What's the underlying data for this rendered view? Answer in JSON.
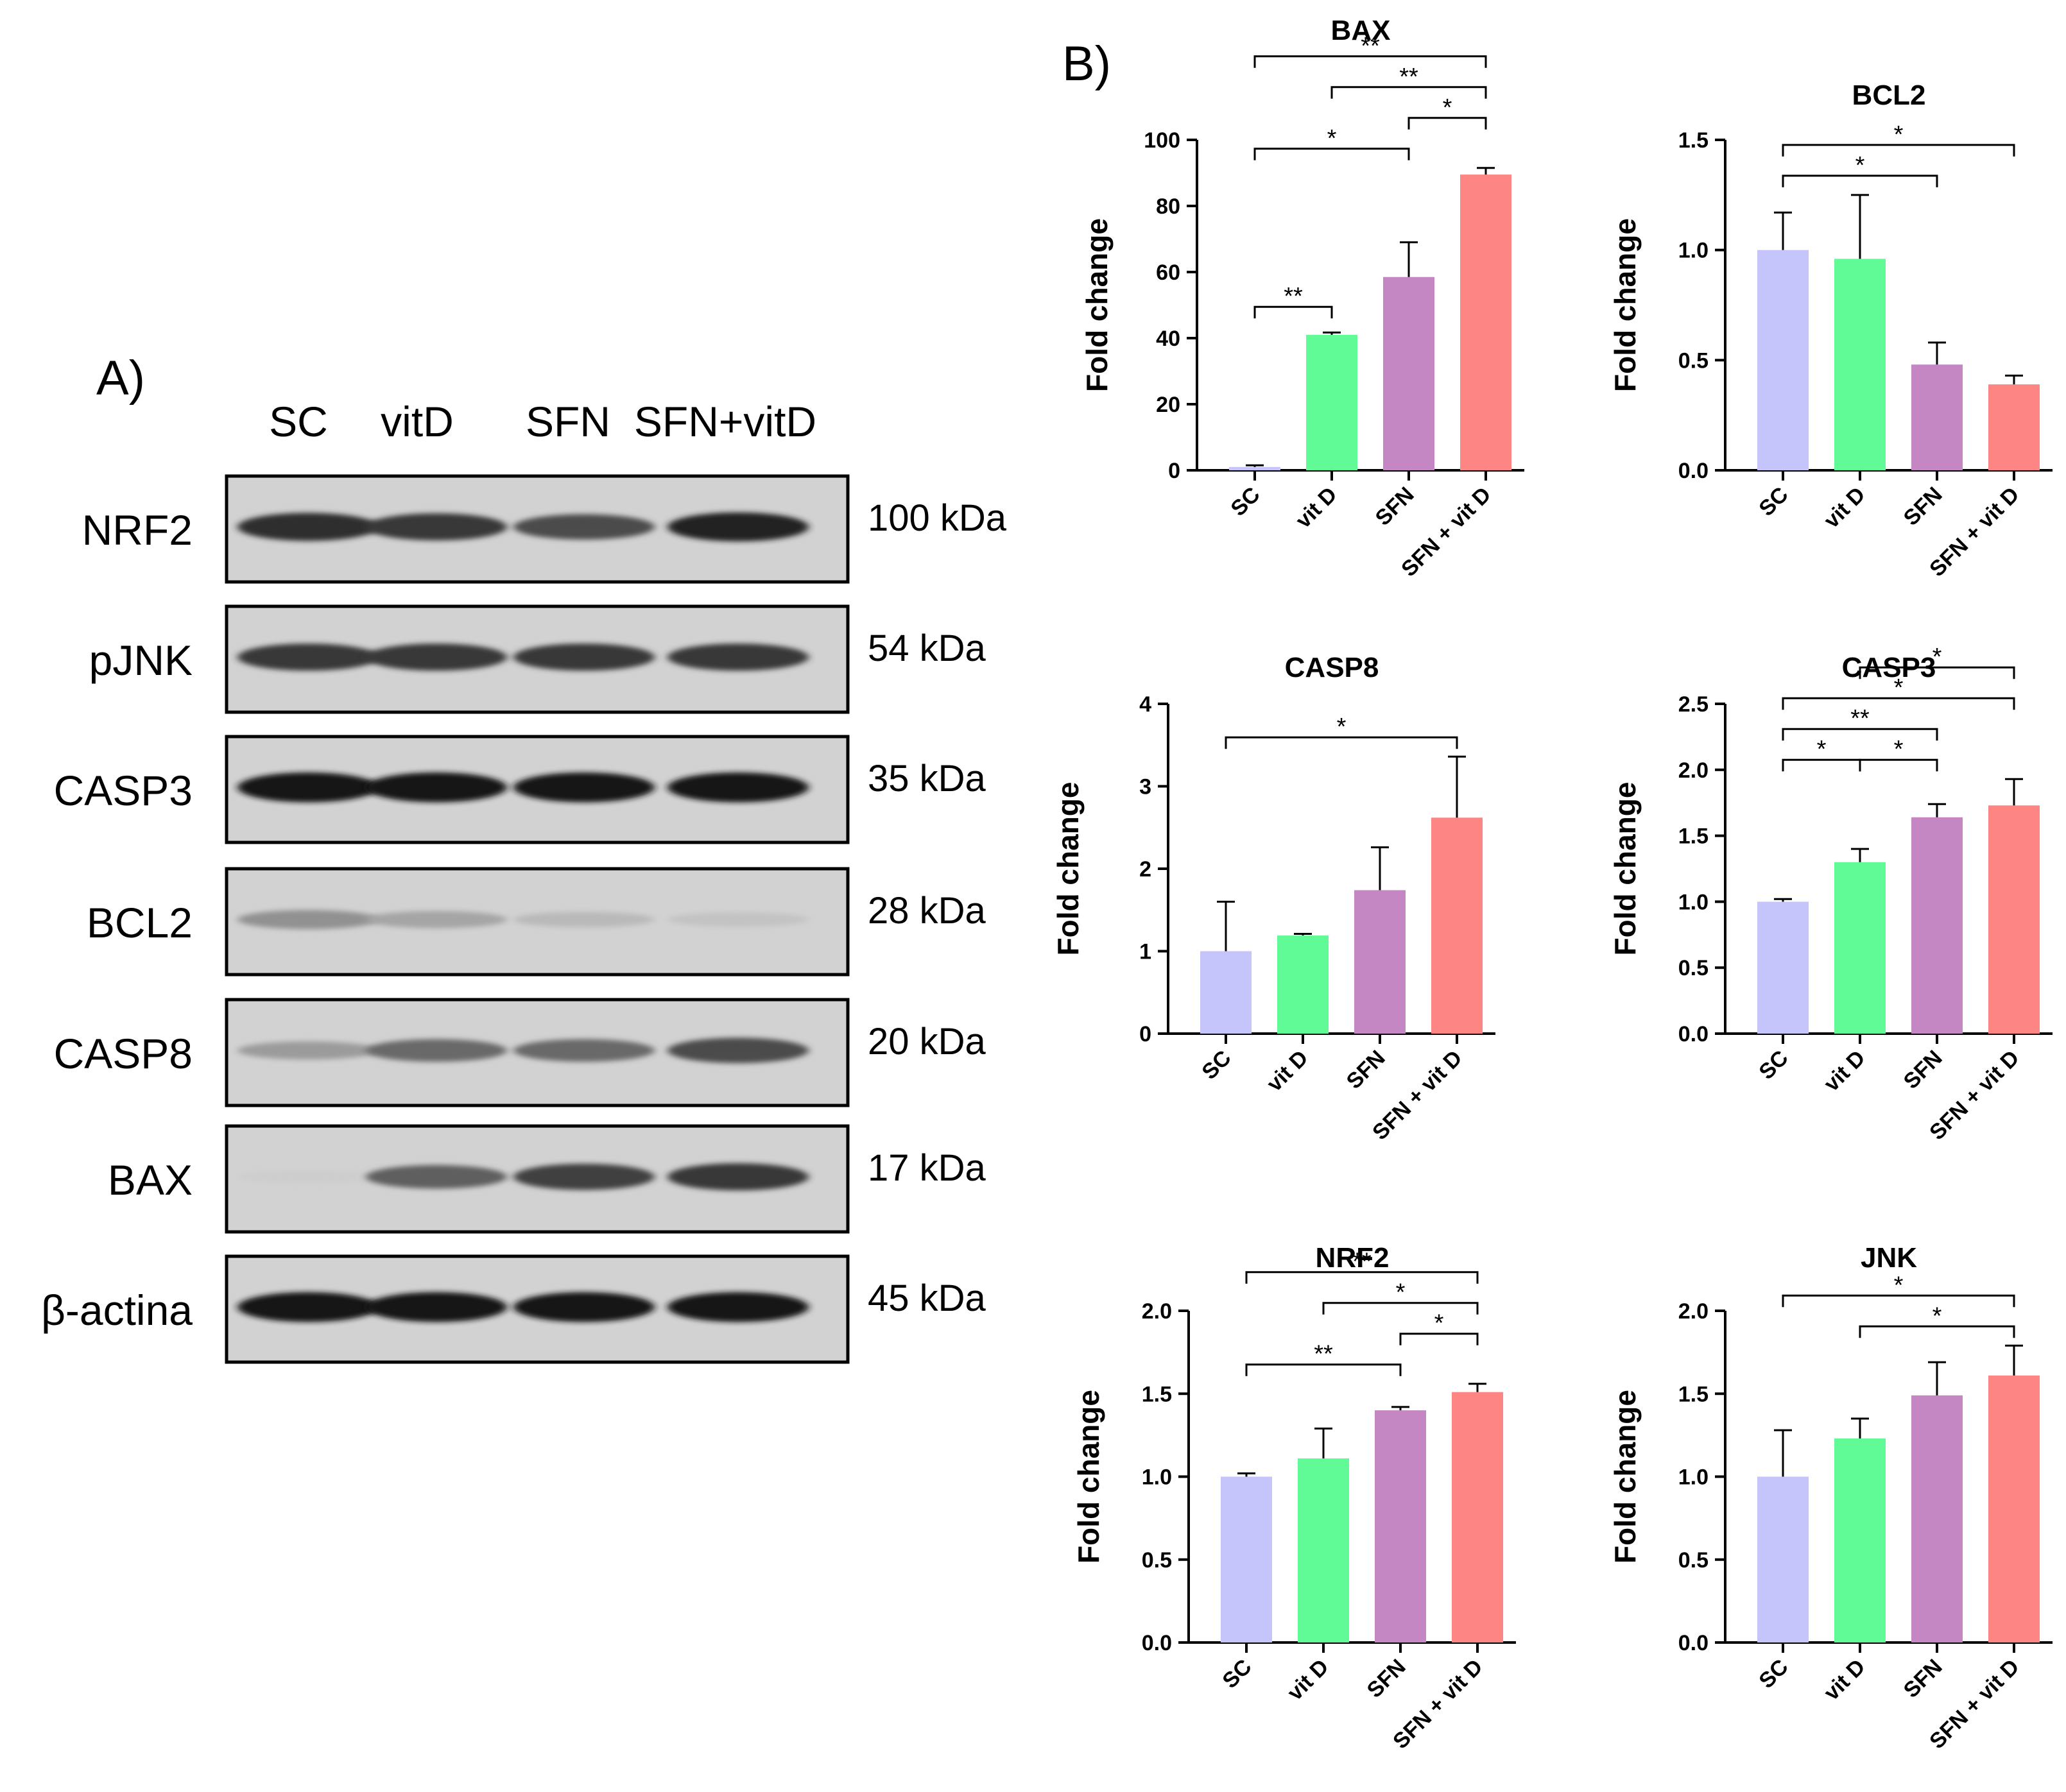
{
  "panel_a": {
    "label": "A)",
    "lanes": [
      "SC",
      "vitD",
      "SFN",
      "SFN+vitD"
    ],
    "blots": [
      {
        "protein": "NRF2",
        "size": "100 kDa",
        "bands": [
          0.85,
          0.8,
          0.7,
          0.9
        ]
      },
      {
        "protein": "pJNK",
        "size": "54 kDa",
        "bands": [
          0.8,
          0.8,
          0.8,
          0.8
        ]
      },
      {
        "protein": "CASP3",
        "size": "35 kDa",
        "bands": [
          0.95,
          0.95,
          0.95,
          0.95
        ]
      },
      {
        "protein": "BCL2",
        "size": "28 kDa",
        "bands": [
          0.35,
          0.25,
          0.15,
          0.1
        ]
      },
      {
        "protein": "CASP8",
        "size": "20 kDa",
        "bands": [
          0.3,
          0.55,
          0.55,
          0.7
        ]
      },
      {
        "protein": "BAX",
        "size": "17 kDa",
        "bands": [
          0.05,
          0.6,
          0.75,
          0.8
        ]
      },
      {
        "protein": "β-actina",
        "size": "45 kDa",
        "bands": [
          0.95,
          0.95,
          0.95,
          0.95
        ]
      }
    ]
  },
  "panel_b": {
    "label": "B)"
  },
  "chart_data": [
    {
      "type": "bar",
      "title": "BAX",
      "ylabel": "Fold change",
      "categories": [
        "SC",
        "vit D",
        "SFN",
        "SFN + vit D"
      ],
      "values": [
        1,
        41,
        58.5,
        89.5
      ],
      "errors": [
        0.5,
        0.7,
        10.5,
        2
      ],
      "ylim": [
        0,
        100
      ],
      "yticks": [
        "0",
        "20",
        "40",
        "60",
        "80",
        "100"
      ],
      "colors": [
        "#c5c5fb",
        "#60fb96",
        "#c487c4",
        "#fd8685"
      ],
      "significance": [
        {
          "from": 0,
          "to": 3,
          "label": "**",
          "level": 3
        },
        {
          "from": 1,
          "to": 3,
          "label": "**",
          "level": 2
        },
        {
          "from": 2,
          "to": 3,
          "label": "*",
          "level": 1
        },
        {
          "from": 0,
          "to": 2,
          "label": "*",
          "level": 0
        },
        {
          "from": 0,
          "to": 1,
          "label": "**",
          "level": -1
        }
      ]
    },
    {
      "type": "bar",
      "title": "BCL2",
      "ylabel": "Fold change",
      "categories": [
        "SC",
        "vit D",
        "SFN",
        "SFN + vit D"
      ],
      "values": [
        1.0,
        0.96,
        0.48,
        0.39
      ],
      "errors": [
        0.17,
        0.29,
        0.1,
        0.04
      ],
      "ylim": [
        0,
        1.5
      ],
      "yticks": [
        "0.0",
        "0.5",
        "1.0",
        "1.5"
      ],
      "colors": [
        "#c5c5fb",
        "#60fb96",
        "#c487c4",
        "#fd8685"
      ],
      "significance": [
        {
          "from": 0,
          "to": 3,
          "label": "*",
          "level": 1
        },
        {
          "from": 0,
          "to": 2,
          "label": "*",
          "level": 0
        }
      ]
    },
    {
      "type": "bar",
      "title": "CASP8",
      "ylabel": "Fold change",
      "categories": [
        "SC",
        "vit D",
        "SFN",
        "SFN + vit D"
      ],
      "values": [
        1.0,
        1.19,
        1.74,
        2.62
      ],
      "errors": [
        0.6,
        0.02,
        0.52,
        0.74
      ],
      "ylim": [
        0,
        4
      ],
      "yticks": [
        "0",
        "1",
        "2",
        "3",
        "4"
      ],
      "colors": [
        "#c5c5fb",
        "#60fb96",
        "#c487c4",
        "#fd8685"
      ],
      "significance": [
        {
          "from": 0,
          "to": 3,
          "label": "*",
          "level": 0
        }
      ]
    },
    {
      "type": "bar",
      "title": "CASP3",
      "ylabel": "Fold change",
      "categories": [
        "SC",
        "vit D",
        "SFN",
        "SFN + vit D"
      ],
      "values": [
        1.0,
        1.3,
        1.64,
        1.73
      ],
      "errors": [
        0.02,
        0.1,
        0.1,
        0.2
      ],
      "ylim": [
        0,
        2.5
      ],
      "yticks": [
        "0.0",
        "0.5",
        "1.0",
        "1.5",
        "2.0",
        "2.5"
      ],
      "colors": [
        "#c5c5fb",
        "#60fb96",
        "#c487c4",
        "#fd8685"
      ],
      "significance": [
        {
          "from": 1,
          "to": 3,
          "label": "*",
          "level": 3
        },
        {
          "from": 0,
          "to": 3,
          "label": "*",
          "level": 2
        },
        {
          "from": 0,
          "to": 2,
          "label": "**",
          "level": 1
        },
        {
          "from": 0,
          "to": 1,
          "label": "*",
          "level": 0
        },
        {
          "from": 1,
          "to": 2,
          "label": "*",
          "level": 0
        }
      ]
    },
    {
      "type": "bar",
      "title": "NRF2",
      "ylabel": "Fold change",
      "categories": [
        "SC",
        "vit D",
        "SFN",
        "SFN + vit D"
      ],
      "values": [
        1.0,
        1.11,
        1.4,
        1.51
      ],
      "errors": [
        0.02,
        0.18,
        0.02,
        0.05
      ],
      "ylim": [
        0,
        2.0
      ],
      "yticks": [
        "0.0",
        "0.5",
        "1.0",
        "1.5",
        "2.0"
      ],
      "colors": [
        "#c5c5fb",
        "#60fb96",
        "#c487c4",
        "#fd8685"
      ],
      "significance": [
        {
          "from": 0,
          "to": 3,
          "label": "**",
          "level": 3
        },
        {
          "from": 1,
          "to": 3,
          "label": "*",
          "level": 2
        },
        {
          "from": 2,
          "to": 3,
          "label": "*",
          "level": 1
        },
        {
          "from": 0,
          "to": 2,
          "label": "**",
          "level": 0
        }
      ]
    },
    {
      "type": "bar",
      "title": "JNK",
      "ylabel": "Fold change",
      "categories": [
        "SC",
        "vit D",
        "SFN",
        "SFN + vit D"
      ],
      "values": [
        1.0,
        1.23,
        1.49,
        1.61
      ],
      "errors": [
        0.28,
        0.12,
        0.2,
        0.18
      ],
      "ylim": [
        0,
        2.0
      ],
      "yticks": [
        "0.0",
        "0.5",
        "1.0",
        "1.5",
        "2.0"
      ],
      "colors": [
        "#c5c5fb",
        "#60fb96",
        "#c487c4",
        "#fd8685"
      ],
      "significance": [
        {
          "from": 0,
          "to": 3,
          "label": "*",
          "level": 1
        },
        {
          "from": 1,
          "to": 3,
          "label": "*",
          "level": 0
        }
      ]
    }
  ]
}
